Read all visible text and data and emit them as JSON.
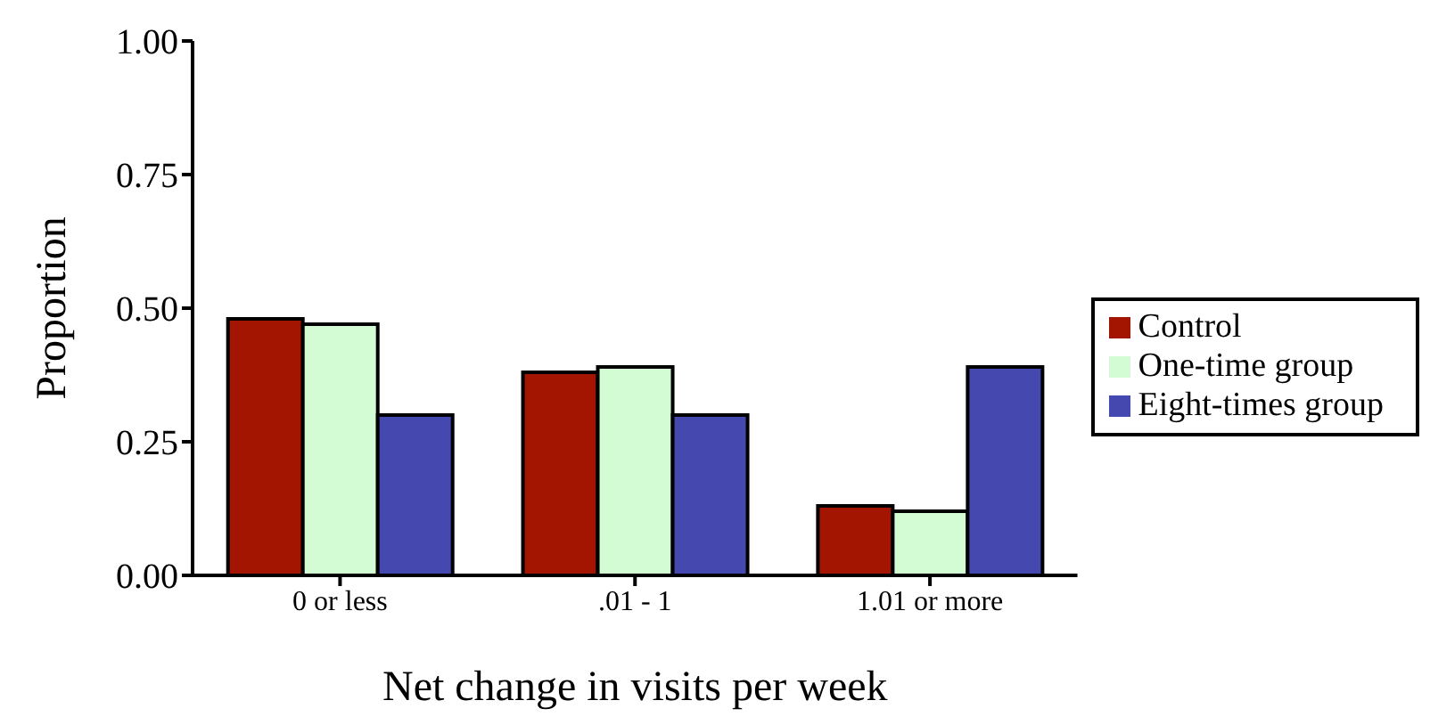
{
  "chart_data": {
    "type": "bar",
    "xlabel": "Net change in visits per week",
    "ylabel": "Proportion",
    "categories": [
      "0 or less",
      ".01 - 1",
      "1.01 or more"
    ],
    "series": [
      {
        "name": "Control",
        "color": "#a31500",
        "values": [
          0.48,
          0.38,
          0.13
        ]
      },
      {
        "name": "One-time group",
        "color": "#d4fcd4",
        "values": [
          0.47,
          0.39,
          0.12
        ]
      },
      {
        "name": "Eight-times group",
        "color": "#4548ae",
        "values": [
          0.3,
          0.3,
          0.39
        ]
      }
    ],
    "ylim": [
      0,
      1
    ],
    "yticks": [
      {
        "value": 0,
        "label": "0.00"
      },
      {
        "value": 0.25,
        "label": "0.25"
      },
      {
        "value": 0.5,
        "label": "0.50"
      },
      {
        "value": 0.75,
        "label": "0.75"
      },
      {
        "value": 1,
        "label": "1.00"
      }
    ],
    "grid": false,
    "legend": "right"
  }
}
